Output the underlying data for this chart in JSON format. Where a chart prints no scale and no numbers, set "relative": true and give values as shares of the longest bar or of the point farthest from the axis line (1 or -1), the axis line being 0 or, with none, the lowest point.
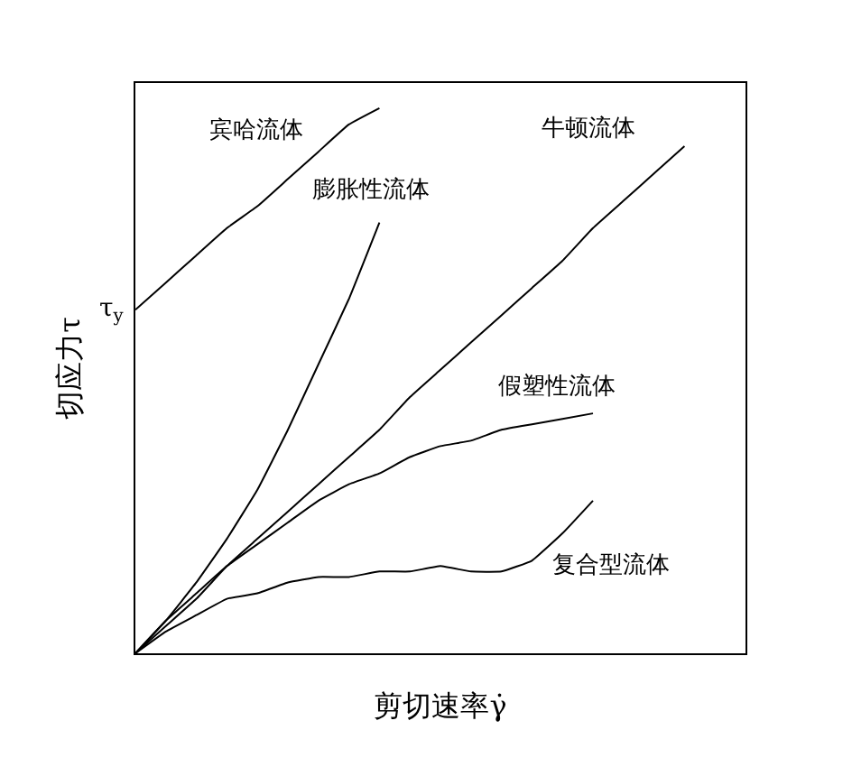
{
  "chart_data": {
    "type": "line",
    "relative": true,
    "xlabel": "剪切速率γ̇",
    "ylabel": "切应力τ",
    "categories": [
      null,
      null,
      null,
      null,
      null,
      null,
      null,
      null,
      null,
      null,
      null,
      null,
      null,
      null,
      null,
      null,
      null,
      null,
      null,
      null,
      null
    ],
    "series": [
      {
        "name": "宾哈流体",
        "color": "#000000",
        "values": [
          0.63,
          0.68,
          0.73,
          0.78,
          0.82,
          0.87,
          0.92,
          0.97,
          1.0,
          null,
          null,
          null,
          null,
          null,
          null,
          null,
          null,
          null,
          null,
          null,
          null
        ]
      },
      {
        "name": "膨胀性流体",
        "color": "#000000",
        "values": [
          0,
          0.06,
          0.13,
          0.21,
          0.3,
          0.41,
          0.53,
          0.65,
          0.79,
          null,
          null,
          null,
          null,
          null,
          null,
          null,
          null,
          null,
          null,
          null,
          null
        ]
      },
      {
        "name": "牛顿流体",
        "color": "#000000",
        "values": [
          0,
          0.05,
          0.1,
          0.16,
          0.21,
          0.26,
          0.31,
          0.36,
          0.41,
          0.47,
          0.52,
          0.57,
          0.62,
          0.67,
          0.72,
          0.78,
          0.83,
          0.88,
          0.93,
          null,
          null
        ]
      },
      {
        "name": "假塑性流体",
        "color": "#000000",
        "values": [
          0,
          0.06,
          0.11,
          0.16,
          0.2,
          0.24,
          0.28,
          0.31,
          0.33,
          0.36,
          0.38,
          0.39,
          0.41,
          0.42,
          0.43,
          0.44,
          null,
          null,
          null,
          null,
          null
        ]
      },
      {
        "name": "复合型流体",
        "color": "#000000",
        "values": [
          0,
          0.04,
          0.07,
          0.1,
          0.11,
          0.13,
          0.14,
          0.14,
          0.15,
          0.15,
          0.16,
          0.15,
          0.15,
          0.17,
          0.22,
          0.28,
          null,
          null,
          null,
          null,
          null
        ]
      }
    ],
    "annotations": [
      "τ$_{y}$"
    ],
    "legend": false,
    "marker": "none",
    "line_style": "solid"
  }
}
